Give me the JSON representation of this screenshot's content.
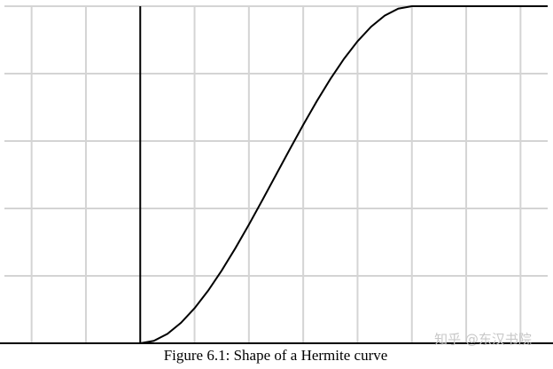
{
  "chart_data": {
    "type": "line",
    "title": "Figure 6.1: Shape of a Hermite curve",
    "watermark": "知乎 @东汉书院",
    "x": [
      0,
      0.05,
      0.1,
      0.15,
      0.2,
      0.25,
      0.3,
      0.35,
      0.4,
      0.45,
      0.5,
      0.55,
      0.6,
      0.65,
      0.7,
      0.75,
      0.8,
      0.85,
      0.9,
      0.95,
      1,
      1.5
    ],
    "series": [
      {
        "color": "#000000",
        "values": [
          0,
          0.00725,
          0.028,
          0.06075,
          0.104,
          0.15625,
          0.216,
          0.28175,
          0.352,
          0.42525,
          0.5,
          0.57475,
          0.648,
          0.71825,
          0.784,
          0.84375,
          0.896,
          0.93925,
          0.972,
          0.99275,
          1,
          1
        ]
      }
    ],
    "xlim": [
      -0.5,
      1.5
    ],
    "ylim": [
      0,
      1
    ],
    "xticks": [
      -0.4,
      -0.2,
      0,
      0.2,
      0.4,
      0.6,
      0.8,
      1,
      1.2,
      1.4
    ],
    "yticks": [
      0,
      0.2,
      0.4,
      0.6,
      0.8,
      1
    ],
    "grid": true
  }
}
